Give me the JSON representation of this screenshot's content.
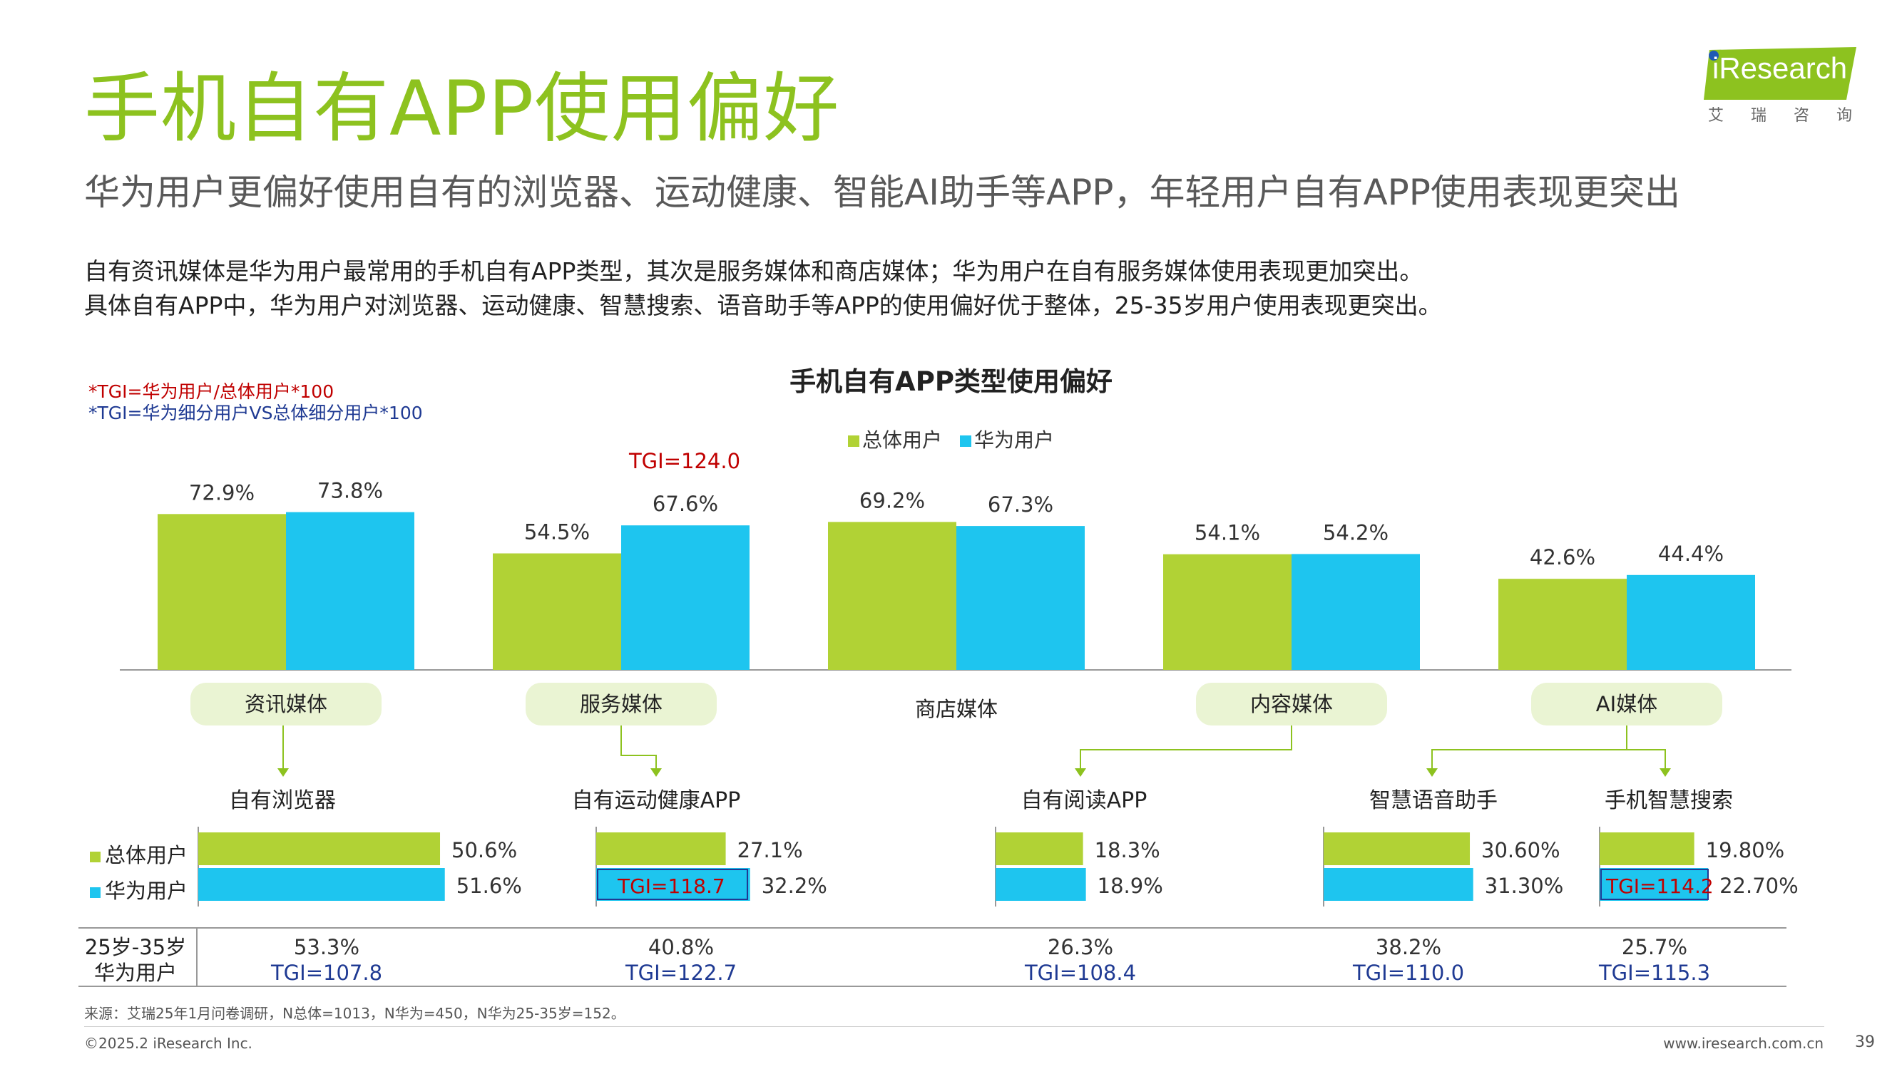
{
  "header": {
    "title": "手机自有APP使用偏好",
    "subtitle": "华为用户更偏好使用自有的浏览器、运动健康、智能AI助手等APP，年轻用户自有APP使用表现更突出",
    "desc_line1": "自有资讯媒体是华为用户最常用的手机自有APP类型，其次是服务媒体和商店媒体；华为用户在自有服务媒体使用表现更加突出。",
    "desc_line2": "具体自有APP中，华为用户对浏览器、运动健康、智慧搜索、语音助手等APP的使用偏好优于整体，25-35岁用户使用表现更突出。"
  },
  "logo": {
    "text": "iResearch",
    "sub": "艾瑞咨询"
  },
  "notes": {
    "tgi1": "*TGI=华为用户/总体用户*100",
    "tgi2": "*TGI=华为细分用户VS总体细分用户*100"
  },
  "colors": {
    "green": "#b1d235",
    "blue": "#1ec5ef",
    "title_green": "#8dc21f",
    "red": "#c00000",
    "navy": "#1f3a93"
  },
  "chart_data": [
    {
      "type": "bar",
      "title": "手机自有APP类型使用偏好",
      "categories": [
        "资讯媒体",
        "服务媒体",
        "商店媒体",
        "内容媒体",
        "AI媒体"
      ],
      "series": [
        {
          "name": "总体用户",
          "values": [
            72.9,
            54.5,
            69.2,
            54.1,
            42.6
          ],
          "labels": [
            "72.9%",
            "54.5%",
            "69.2%",
            "54.1%",
            "42.6%"
          ]
        },
        {
          "name": "华为用户",
          "values": [
            73.8,
            67.6,
            67.3,
            54.2,
            44.4
          ],
          "labels": [
            "73.8%",
            "67.6%",
            "67.3%",
            "54.2%",
            "44.4%"
          ]
        }
      ],
      "annotations": [
        {
          "category": "服务媒体",
          "text": "TGI=124.0"
        }
      ],
      "ylim": [
        0,
        100
      ]
    },
    {
      "type": "bar",
      "orientation": "horizontal",
      "categories": [
        "自有浏览器",
        "自有运动健康APP",
        "自有阅读APP",
        "智慧语音助手",
        "手机智慧搜索"
      ],
      "parent_categories": [
        "资讯媒体",
        "服务媒体",
        "内容媒体",
        "AI媒体",
        "AI媒体"
      ],
      "series": [
        {
          "name": "总体用户",
          "values": [
            50.6,
            27.1,
            18.3,
            30.6,
            19.8
          ],
          "labels": [
            "50.6%",
            "27.1%",
            "18.3%",
            "30.60%",
            "19.80%"
          ]
        },
        {
          "name": "华为用户",
          "values": [
            51.6,
            32.2,
            18.9,
            31.3,
            22.7
          ],
          "labels": [
            "51.6%",
            "32.2%",
            "18.9%",
            "31.30%",
            "22.70%"
          ]
        }
      ],
      "annotations": [
        {
          "category": "自有运动健康APP",
          "text": "TGI=118.7"
        },
        {
          "category": "手机智慧搜索",
          "text": "TGI=114.2"
        }
      ]
    },
    {
      "type": "table",
      "row_label": "25岁-35岁华为用户",
      "categories": [
        "自有浏览器",
        "自有运动健康APP",
        "自有阅读APP",
        "智慧语音助手",
        "手机智慧搜索"
      ],
      "values": [
        "53.3%",
        "40.8%",
        "26.3%",
        "38.2%",
        "25.7%"
      ],
      "tgi": [
        "TGI=107.8",
        "TGI=122.7",
        "TGI=108.4",
        "TGI=110.0",
        "TGI=115.3"
      ]
    }
  ],
  "footer": {
    "source": "来源：艾瑞25年1月问卷调研，N总体=1013，N华为=450，N华为25-35岁=152。",
    "copyright": "©2025.2 iResearch Inc.",
    "website": "www.iresearch.com.cn",
    "page": "39"
  }
}
